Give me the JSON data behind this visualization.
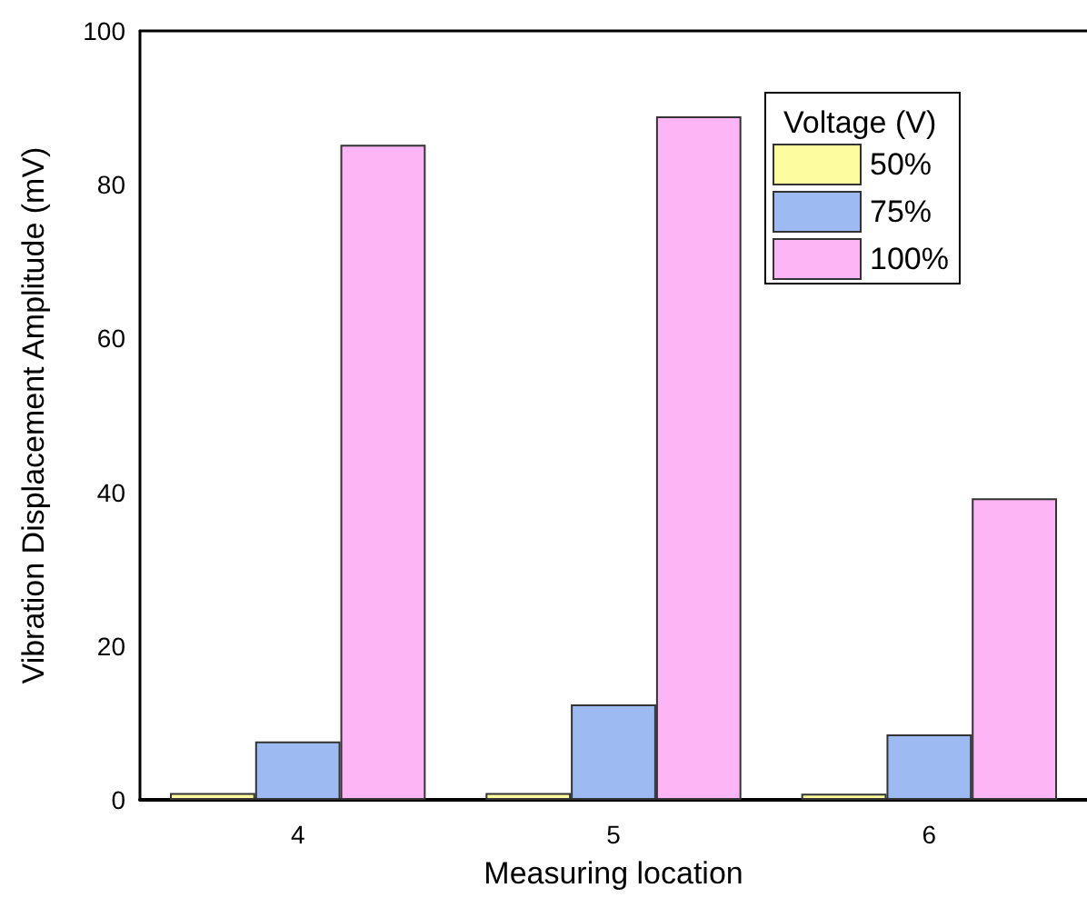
{
  "chart_data": {
    "type": "bar",
    "xlabel": "Measuring location",
    "ylabel": "Vibration Displacement Amplitude (mV)",
    "legend_title": "Voltage (V)",
    "categories": [
      "4",
      "5",
      "6"
    ],
    "series": [
      {
        "name": "50%",
        "color": "#fdfda0",
        "values": [
          0.9,
          0.9,
          0.8
        ]
      },
      {
        "name": "75%",
        "color": "#9dbaf3",
        "values": [
          7.6,
          12.4,
          8.5
        ]
      },
      {
        "name": "100%",
        "color": "#fdb5f6",
        "values": [
          85.2,
          88.9,
          39.2
        ]
      }
    ],
    "ylim": [
      0,
      100
    ],
    "yticks": [
      0,
      20,
      40,
      60,
      80,
      100
    ],
    "grid": false,
    "legend": "top right"
  }
}
